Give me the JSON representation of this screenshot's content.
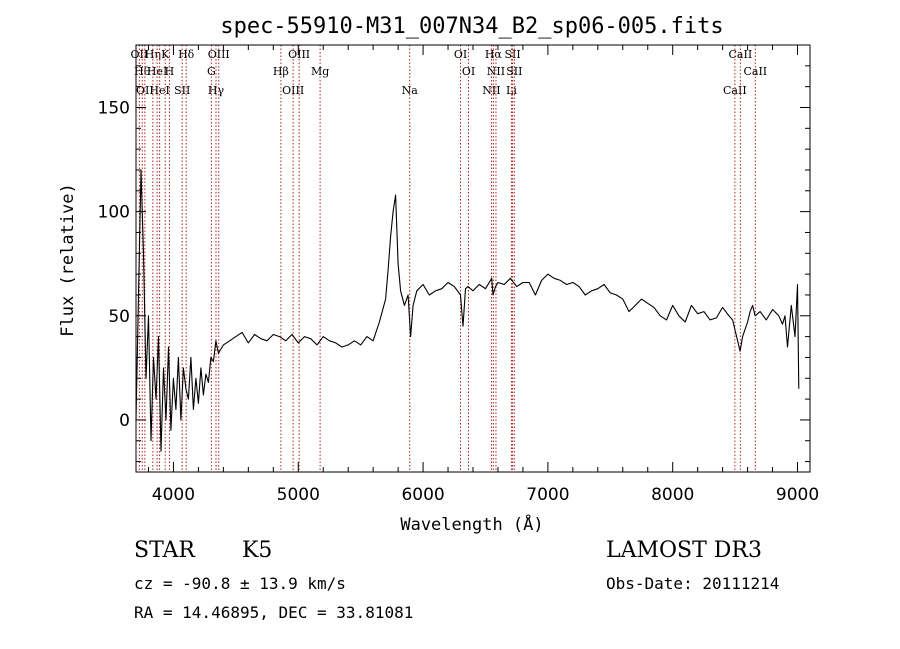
{
  "chart_data": {
    "type": "line",
    "title": "spec-55910-M31_007N34_B2_sp06-005.fits",
    "xlabel": "Wavelength (Å)",
    "ylabel": "Flux (relative)",
    "xlim": [
      3700,
      9100
    ],
    "ylim": [
      -25,
      180
    ],
    "xticks": [
      4000,
      5000,
      6000,
      7000,
      8000,
      9000
    ],
    "yticks": [
      0,
      50,
      100,
      150
    ],
    "grid": false,
    "series": [
      {
        "name": "flux",
        "color": "#000000",
        "x": [
          3700,
          3720,
          3740,
          3760,
          3780,
          3800,
          3820,
          3840,
          3860,
          3880,
          3900,
          3920,
          3940,
          3960,
          3980,
          4000,
          4020,
          4040,
          4060,
          4080,
          4100,
          4120,
          4140,
          4160,
          4180,
          4200,
          4220,
          4240,
          4260,
          4280,
          4300,
          4320,
          4340,
          4360,
          4380,
          4400,
          4450,
          4500,
          4550,
          4600,
          4650,
          4700,
          4750,
          4800,
          4850,
          4900,
          4950,
          5000,
          5050,
          5100,
          5150,
          5200,
          5250,
          5300,
          5350,
          5400,
          5450,
          5500,
          5550,
          5600,
          5650,
          5700,
          5720,
          5740,
          5760,
          5780,
          5800,
          5820,
          5850,
          5880,
          5900,
          5920,
          5950,
          6000,
          6050,
          6100,
          6150,
          6200,
          6250,
          6300,
          6320,
          6340,
          6360,
          6400,
          6450,
          6500,
          6550,
          6560,
          6580,
          6600,
          6650,
          6700,
          6750,
          6800,
          6850,
          6900,
          6950,
          7000,
          7050,
          7100,
          7150,
          7200,
          7250,
          7300,
          7350,
          7400,
          7450,
          7500,
          7550,
          7600,
          7650,
          7700,
          7750,
          7800,
          7850,
          7900,
          7950,
          8000,
          8050,
          8100,
          8150,
          8200,
          8250,
          8300,
          8350,
          8400,
          8450,
          8480,
          8500,
          8520,
          8540,
          8560,
          8600,
          8620,
          8640,
          8660,
          8700,
          8750,
          8800,
          8850,
          8880,
          8900,
          8920,
          8950,
          8980,
          9000,
          9010
        ],
        "values": [
          0,
          60,
          120,
          80,
          20,
          50,
          -10,
          30,
          10,
          40,
          -15,
          25,
          0,
          35,
          -5,
          20,
          5,
          30,
          0,
          25,
          15,
          10,
          30,
          5,
          20,
          8,
          25,
          12,
          22,
          18,
          30,
          28,
          38,
          32,
          34,
          36,
          38,
          40,
          42,
          37,
          41,
          39,
          38,
          41,
          40,
          38,
          41,
          37,
          40,
          39,
          36,
          40,
          38,
          37,
          35,
          36,
          38,
          36,
          40,
          38,
          47,
          58,
          72,
          88,
          100,
          108,
          75,
          62,
          55,
          60,
          40,
          55,
          62,
          65,
          60,
          62,
          63,
          66,
          64,
          60,
          45,
          63,
          64,
          62,
          65,
          63,
          68,
          60,
          64,
          66,
          65,
          68,
          64,
          66,
          66,
          60,
          67,
          70,
          68,
          67,
          65,
          66,
          64,
          60,
          62,
          63,
          65,
          61,
          60,
          58,
          52,
          55,
          58,
          56,
          54,
          50,
          48,
          55,
          50,
          47,
          55,
          51,
          52,
          48,
          49,
          54,
          50,
          48,
          43,
          38,
          33,
          40,
          47,
          52,
          55,
          50,
          52,
          48,
          53,
          50,
          46,
          50,
          35,
          55,
          40,
          65,
          15
        ]
      }
    ],
    "line_markers": [
      {
        "wave": 3727,
        "label": "OII"
      },
      {
        "wave": 3750,
        "label": "Hθ"
      },
      {
        "wave": 3771,
        "label": "OII"
      },
      {
        "wave": 3835,
        "label": "Hη"
      },
      {
        "wave": 3869,
        "label": "HeI"
      },
      {
        "wave": 3889,
        "label": "HeI"
      },
      {
        "wave": 3934,
        "label": "K"
      },
      {
        "wave": 3968,
        "label": "H"
      },
      {
        "wave": 4070,
        "label": "SII"
      },
      {
        "wave": 4102,
        "label": "Hδ"
      },
      {
        "wave": 4304,
        "label": "G"
      },
      {
        "wave": 4341,
        "label": "Hγ"
      },
      {
        "wave": 4363,
        "label": "OIII"
      },
      {
        "wave": 4861,
        "label": "Hβ"
      },
      {
        "wave": 4959,
        "label": "OIII"
      },
      {
        "wave": 5007,
        "label": "OIII"
      },
      {
        "wave": 5175,
        "label": "Mg"
      },
      {
        "wave": 5893,
        "label": "Na"
      },
      {
        "wave": 6300,
        "label": "OI"
      },
      {
        "wave": 6364,
        "label": "OI"
      },
      {
        "wave": 6548,
        "label": "NII"
      },
      {
        "wave": 6563,
        "label": "Hα"
      },
      {
        "wave": 6584,
        "label": "NII"
      },
      {
        "wave": 6708,
        "label": "Li"
      },
      {
        "wave": 6717,
        "label": "SII"
      },
      {
        "wave": 6731,
        "label": "SII"
      },
      {
        "wave": 8498,
        "label": "CaII"
      },
      {
        "wave": 8542,
        "label": "CaII"
      },
      {
        "wave": 8662,
        "label": "CaII"
      }
    ],
    "marker_color": "#b22222"
  },
  "info": {
    "object_class": "STAR",
    "subclass": "K5",
    "survey": "LAMOST DR3",
    "redshift": "cz = -90.8 ± 13.9 km/s",
    "obs_date": "Obs-Date: 20111214",
    "coords": "RA =  14.46895, DEC =  33.81081"
  }
}
